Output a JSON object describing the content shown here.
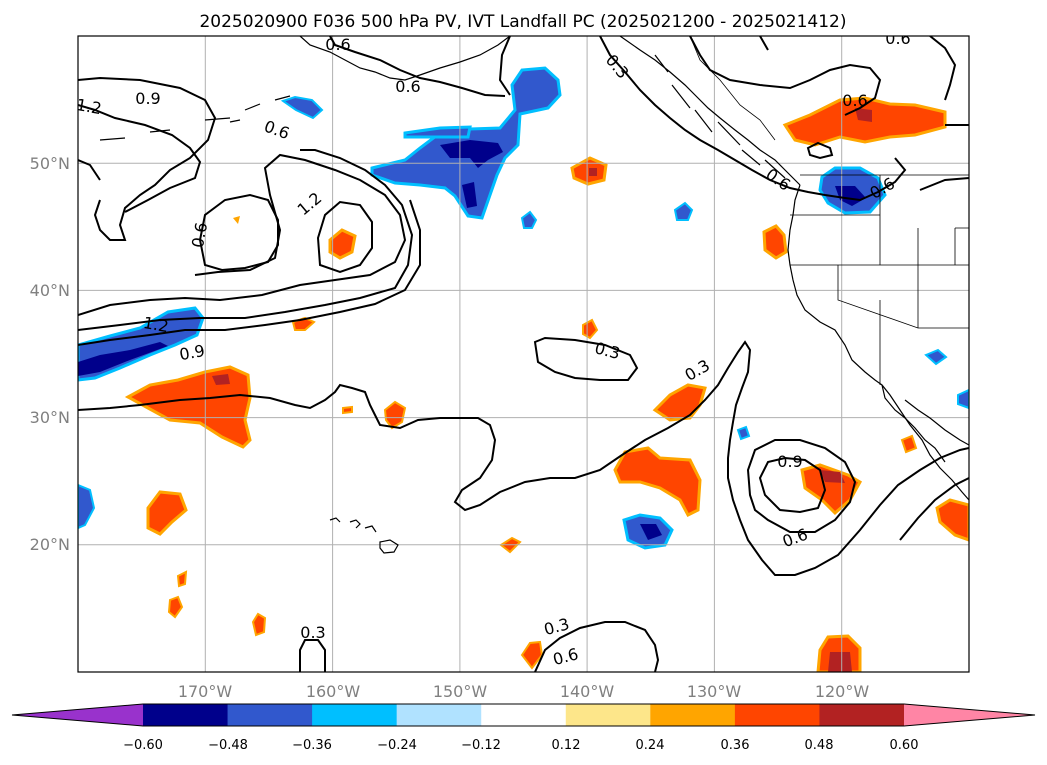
{
  "title": "2025020900 F036 500 hPa PV, IVT Landfall PC (2025021200 - 2025021412)",
  "lat_labels": [
    "50°N",
    "40°N",
    "30°N",
    "20°N"
  ],
  "lon_labels": [
    "170°W",
    "160°W",
    "150°W",
    "140°W",
    "130°W",
    "120°W"
  ],
  "colorbar": {
    "ticks": [
      "−0.60",
      "−0.48",
      "−0.36",
      "−0.24",
      "−0.12",
      "0.12",
      "0.24",
      "0.36",
      "0.48",
      "0.60"
    ],
    "colors": [
      "#9932cc",
      "#00008b",
      "#3158cd",
      "#00bfff",
      "#b0e2ff",
      "#ffffff",
      "#fde68a",
      "#ffa500",
      "#ff4500",
      "#b22222",
      "#ff85a5"
    ]
  },
  "contour_labels": {
    "c1": "0.9",
    "c2": "0.6",
    "c3": "0.3",
    "c4": "0.6",
    "c5": "1.2",
    "c6": "0.9",
    "c7": "0.6",
    "c8": "0.6",
    "c9": "1.2",
    "c10": "0.9",
    "c11": "0.3",
    "c12": "0.3",
    "c13": "0.9",
    "c14": "0.6",
    "c15": "0.3",
    "c16": "0.3",
    "c17": "0.6",
    "c18": "0.6",
    "c19": "0.6",
    "c20": "0.6",
    "c21": "0.6"
  },
  "map_extent": {
    "lon_min": -180,
    "lon_max": -110,
    "lat_min": 10,
    "lat_max": 60
  }
}
